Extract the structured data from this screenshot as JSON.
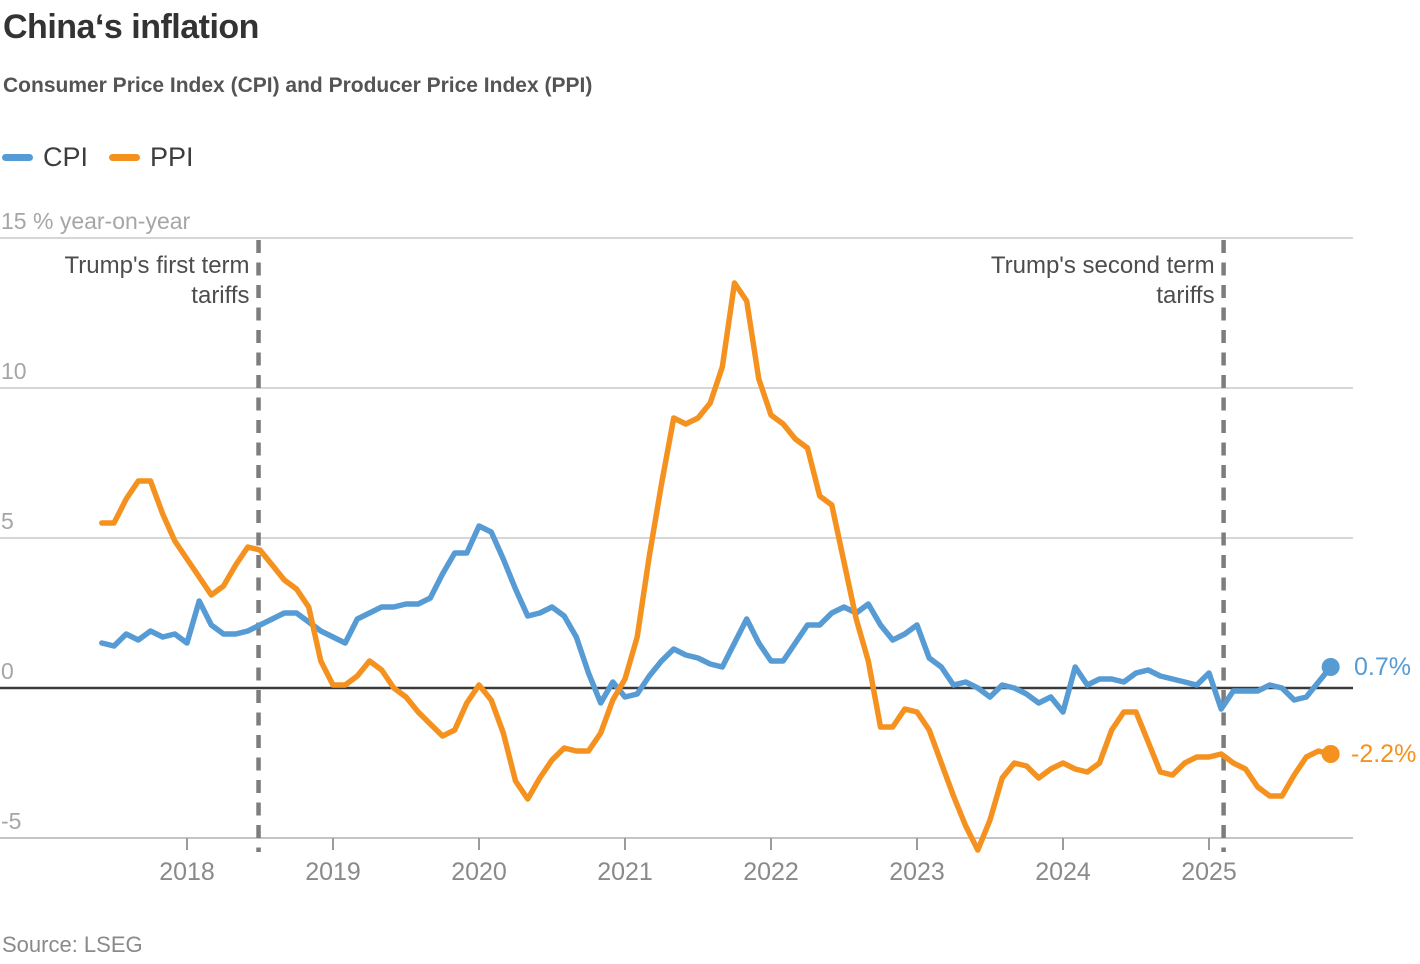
{
  "title": "China‘s inflation",
  "subtitle": "Consumer Price Index (CPI) and Producer Price Index (PPI)",
  "source": "Source: LSEG",
  "colors": {
    "cpi": "#569BD4",
    "ppi": "#F5921F",
    "gridline": "#c9c9c9",
    "zero_line": "#3a3a3a",
    "axis_line": "#bdbdbd",
    "tick": "#9b9b9b",
    "dashed_line": "#7d7d7d"
  },
  "legend": [
    {
      "label": "CPI",
      "color": "#569BD4"
    },
    {
      "label": "PPI",
      "color": "#F5921F"
    }
  ],
  "chart_data": {
    "type": "line",
    "title": "China‘s inflation",
    "subtitle": "Consumer Price Index (CPI) and Producer Price Index (PPI)",
    "unit": "% year-on-year",
    "frequency": "monthly",
    "start_month": "2017-06",
    "end_month": "2025-11",
    "grid": true,
    "legend_position": "top-left",
    "y_axis": {
      "range": [
        -5.8,
        15
      ],
      "ticks": [
        {
          "value": 15,
          "label": "15 % year-on-year"
        },
        {
          "value": 10,
          "label": "10"
        },
        {
          "value": 5,
          "label": "5"
        },
        {
          "value": 0,
          "label": "0"
        },
        {
          "value": -5,
          "label": "-5"
        }
      ]
    },
    "x_axis": {
      "tick_years": [
        2018,
        2019,
        2020,
        2021,
        2022,
        2023,
        2024,
        2025
      ]
    },
    "series": [
      {
        "name": "CPI",
        "color": "#569BD4",
        "values": [
          1.5,
          1.4,
          1.8,
          1.6,
          1.9,
          1.7,
          1.8,
          1.5,
          2.9,
          2.1,
          1.8,
          1.8,
          1.9,
          2.1,
          2.3,
          2.5,
          2.5,
          2.2,
          1.9,
          1.7,
          1.5,
          2.3,
          2.5,
          2.7,
          2.7,
          2.8,
          2.8,
          3.0,
          3.8,
          4.5,
          4.5,
          5.4,
          5.2,
          4.3,
          3.3,
          2.4,
          2.5,
          2.7,
          2.4,
          1.7,
          0.5,
          -0.5,
          0.2,
          -0.3,
          -0.2,
          0.4,
          0.9,
          1.3,
          1.1,
          1.0,
          0.8,
          0.7,
          1.5,
          2.3,
          1.5,
          0.9,
          0.9,
          1.5,
          2.1,
          2.1,
          2.5,
          2.7,
          2.5,
          2.8,
          2.1,
          1.6,
          1.8,
          2.1,
          1.0,
          0.7,
          0.1,
          0.2,
          0.0,
          -0.3,
          0.1,
          0.0,
          -0.2,
          -0.5,
          -0.3,
          -0.8,
          0.7,
          0.1,
          0.3,
          0.3,
          0.2,
          0.5,
          0.6,
          0.4,
          0.3,
          0.2,
          0.1,
          0.5,
          -0.7,
          -0.1,
          -0.1,
          -0.1,
          0.1,
          0.0,
          -0.4,
          -0.3,
          0.2,
          0.7
        ]
      },
      {
        "name": "PPI",
        "color": "#F5921F",
        "values": [
          5.5,
          5.5,
          6.3,
          6.9,
          6.9,
          5.8,
          4.9,
          4.3,
          3.7,
          3.1,
          3.4,
          4.1,
          4.7,
          4.6,
          4.1,
          3.6,
          3.3,
          2.7,
          0.9,
          0.1,
          0.1,
          0.4,
          0.9,
          0.6,
          0.0,
          -0.3,
          -0.8,
          -1.2,
          -1.6,
          -1.4,
          -0.5,
          0.1,
          -0.4,
          -1.5,
          -3.1,
          -3.7,
          -3.0,
          -2.4,
          -2.0,
          -2.1,
          -2.1,
          -1.5,
          -0.4,
          0.3,
          1.7,
          4.4,
          6.8,
          9.0,
          8.8,
          9.0,
          9.5,
          10.7,
          13.5,
          12.9,
          10.3,
          9.1,
          8.8,
          8.3,
          8.0,
          6.4,
          6.1,
          4.2,
          2.3,
          0.9,
          -1.3,
          -1.3,
          -0.7,
          -0.8,
          -1.4,
          -2.5,
          -3.6,
          -4.6,
          -5.4,
          -4.4,
          -3.0,
          -2.5,
          -2.6,
          -3.0,
          -2.7,
          -2.5,
          -2.7,
          -2.8,
          -2.5,
          -1.4,
          -0.8,
          -0.8,
          -1.8,
          -2.8,
          -2.9,
          -2.5,
          -2.3,
          -2.3,
          -2.2,
          -2.5,
          -2.7,
          -3.3,
          -3.6,
          -3.6,
          -2.9,
          -2.3,
          -2.1,
          -2.2
        ]
      }
    ],
    "end_labels": {
      "cpi": "0.7%",
      "ppi": "-2.2%"
    },
    "annotations": [
      {
        "line1": "Trump's first term",
        "line2": "tariffs",
        "x_year": 2018.49
      },
      {
        "line1": "Trump's second term",
        "line2": "tariffs",
        "x_year": 2025.1
      }
    ]
  }
}
